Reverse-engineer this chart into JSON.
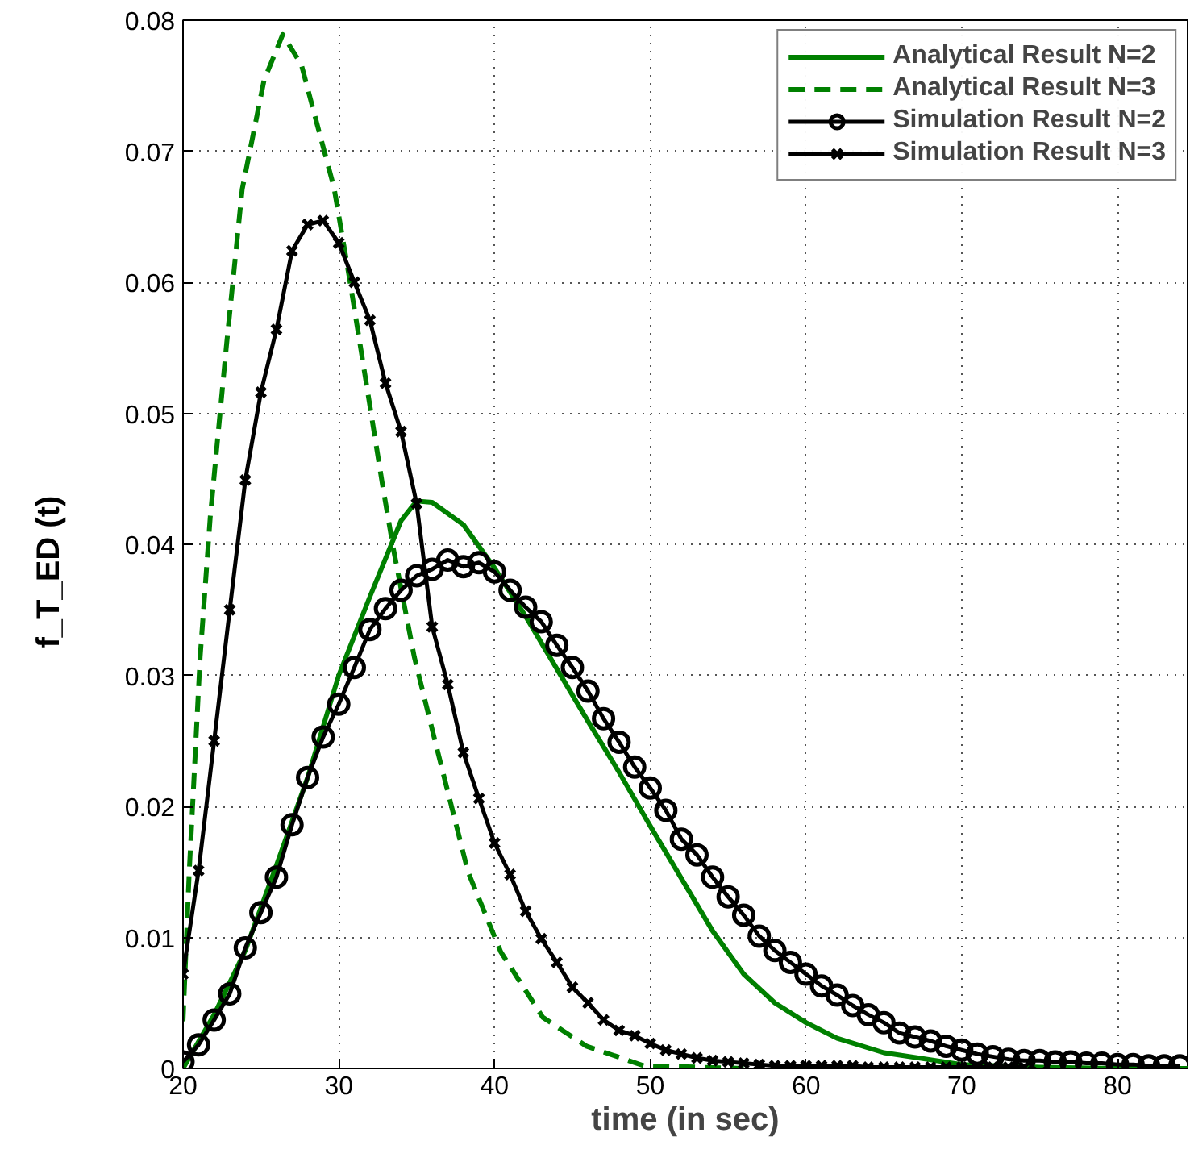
{
  "chart_data": {
    "type": "line",
    "xlabel": "time (in sec)",
    "ylabel": "f_T_ED (t)",
    "xlim": [
      20,
      84.5
    ],
    "ylim": [
      0,
      0.08
    ],
    "xticks": [
      20,
      30,
      40,
      50,
      60,
      70,
      80
    ],
    "yticks": [
      0,
      0.01,
      0.02,
      0.03,
      0.04,
      0.05,
      0.06,
      0.07,
      0.08
    ],
    "grid": true,
    "legend": "top right",
    "series": [
      {
        "name": "Analytical Result N=2",
        "color": "#008000",
        "marker": "none",
        "line_style": "solid",
        "x": [
          20,
          22,
          24,
          26,
          28,
          30,
          32,
          34,
          35,
          36,
          38,
          40,
          42,
          44,
          46,
          48,
          50,
          52,
          54,
          56,
          58,
          60,
          62,
          65,
          70,
          75,
          80,
          84.5
        ],
        "values": [
          0,
          0.0041,
          0.009,
          0.0155,
          0.0222,
          0.03,
          0.036,
          0.0418,
          0.0433,
          0.0432,
          0.0415,
          0.0382,
          0.0345,
          0.0305,
          0.0265,
          0.0226,
          0.0185,
          0.0145,
          0.0105,
          0.0072,
          0.005,
          0.0035,
          0.0023,
          0.0012,
          0.0003,
          0.0001,
          0,
          0
        ]
      },
      {
        "name": "Analytical Result N=3",
        "color": "#008000",
        "marker": "none",
        "line_style": "dashed",
        "x": [
          20,
          20.4,
          21.1,
          21.75,
          22.8,
          23.8,
          25.2,
          26.4,
          27.6,
          28.6,
          29.7,
          30.7,
          31.7,
          32.8,
          33.5,
          34.85,
          36.2,
          38.3,
          40.4,
          43.1,
          45.9,
          49.6,
          53,
          56
        ],
        "values": [
          0.0036,
          0.015,
          0.0314,
          0.0421,
          0.0553,
          0.0671,
          0.0754,
          0.0789,
          0.0766,
          0.0721,
          0.0672,
          0.0602,
          0.0528,
          0.0446,
          0.0397,
          0.0314,
          0.0249,
          0.015,
          0.0089,
          0.0039,
          0.0017,
          0.0002,
          0.0001,
          0
        ]
      },
      {
        "name": "Simulation Result N=2",
        "color": "#000000",
        "marker": "circle",
        "line_style": "solid",
        "x": [
          20,
          21,
          22,
          23,
          24,
          25,
          26,
          27,
          28,
          29,
          30,
          31,
          32,
          33,
          34,
          35,
          36,
          37,
          38,
          39,
          40,
          41,
          42,
          43,
          44,
          45,
          46,
          47,
          48,
          49,
          50,
          51,
          52,
          53,
          54,
          55,
          56,
          57,
          58,
          59,
          60,
          61,
          62,
          63,
          64,
          65,
          66,
          67,
          68,
          69,
          70,
          71,
          72,
          73,
          74,
          75,
          76,
          77,
          78,
          79,
          80,
          81,
          82,
          83,
          84
        ],
        "values": [
          0.0005,
          0.0018,
          0.0037,
          0.0057,
          0.0092,
          0.0119,
          0.0146,
          0.0186,
          0.0222,
          0.0253,
          0.0278,
          0.0306,
          0.0335,
          0.0351,
          0.0365,
          0.0376,
          0.0381,
          0.0388,
          0.0383,
          0.0386,
          0.0379,
          0.0365,
          0.0352,
          0.0341,
          0.0323,
          0.0306,
          0.0288,
          0.0267,
          0.0249,
          0.023,
          0.0214,
          0.0197,
          0.0175,
          0.0163,
          0.0146,
          0.0131,
          0.0117,
          0.0101,
          0.009,
          0.0081,
          0.0072,
          0.0063,
          0.0056,
          0.0048,
          0.0041,
          0.0035,
          0.0027,
          0.0024,
          0.0021,
          0.0017,
          0.0014,
          0.0011,
          0.0009,
          0.0007,
          0.0006,
          0.0006,
          0.0005,
          0.0005,
          0.0004,
          0.0004,
          0.0003,
          0.0003,
          0.0002,
          0.0002,
          0.0002
        ]
      },
      {
        "name": "Simulation Result N=3",
        "color": "#000000",
        "marker": "cross",
        "line_style": "solid",
        "x": [
          20,
          21,
          22,
          23,
          24,
          25,
          26,
          27,
          28,
          29,
          30,
          31,
          32,
          33,
          34,
          35,
          36,
          37,
          38,
          39,
          40,
          41,
          42,
          43,
          44,
          45,
          46,
          47,
          48,
          49,
          50,
          51,
          52,
          53,
          54,
          55,
          56,
          57,
          58,
          59,
          60,
          61,
          62,
          63,
          64,
          65,
          66,
          67,
          68,
          69,
          70,
          71,
          72,
          73,
          74
        ],
        "values": [
          0.0072,
          0.0151,
          0.025,
          0.035,
          0.0449,
          0.0516,
          0.0564,
          0.0624,
          0.0644,
          0.0647,
          0.063,
          0.06,
          0.0571,
          0.0523,
          0.0486,
          0.0431,
          0.0337,
          0.0293,
          0.0241,
          0.0206,
          0.0172,
          0.0148,
          0.012,
          0.0099,
          0.0081,
          0.0062,
          0.005,
          0.0037,
          0.0029,
          0.0025,
          0.0019,
          0.0014,
          0.0011,
          0.0008,
          0.0006,
          0.0005,
          0.0004,
          0.0003,
          0.0002,
          0.0002,
          0.0002,
          0.0002,
          0.0002,
          0.0002,
          0.0001,
          0.0001,
          0.0001,
          0.0001,
          0.0001,
          0.0001,
          0.0001,
          0.0001,
          0.0001,
          0.0001,
          0.0001
        ]
      }
    ]
  }
}
